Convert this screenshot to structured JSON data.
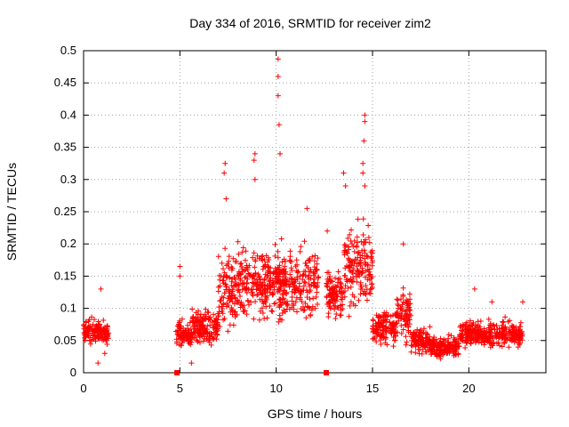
{
  "chart_data": {
    "type": "scatter",
    "title": "Day 334 of 2016, SRMTID for receiver zim2",
    "xlabel": "GPS time / hours",
    "ylabel": "SRMTID / TECUs",
    "xlim": [
      0,
      24
    ],
    "ylim": [
      0,
      0.5
    ],
    "x_ticks": [
      0,
      5,
      10,
      15,
      20
    ],
    "x_tick_labels": [
      "0",
      "5",
      "10",
      "15",
      "20"
    ],
    "y_ticks": [
      0,
      0.05,
      0.1,
      0.15,
      0.2,
      0.25,
      0.3,
      0.35,
      0.4,
      0.45,
      0.5
    ],
    "y_tick_labels": [
      "0",
      "0.05",
      "0.1",
      "0.15",
      "0.2",
      "0.25",
      "0.3",
      "0.35",
      "0.4",
      "0.45",
      "0.5"
    ],
    "grid": true,
    "marker": "+",
    "color": "#ff0000",
    "series": [
      {
        "name": "SRMTID",
        "density_profile": [
          {
            "x_range": [
              0.0,
              1.3
            ],
            "y_median": 0.062,
            "y_spread": 0.018
          },
          {
            "x_range": [
              4.8,
              5.6
            ],
            "y_median": 0.06,
            "y_spread": 0.02
          },
          {
            "x_range": [
              5.6,
              7.0
            ],
            "y_median": 0.07,
            "y_spread": 0.025
          },
          {
            "x_range": [
              7.0,
              8.0
            ],
            "y_median": 0.13,
            "y_spread": 0.06
          },
          {
            "x_range": [
              8.0,
              9.5
            ],
            "y_median": 0.14,
            "y_spread": 0.06
          },
          {
            "x_range": [
              9.5,
              12.2
            ],
            "y_median": 0.14,
            "y_spread": 0.05
          },
          {
            "x_range": [
              12.6,
              13.5
            ],
            "y_median": 0.12,
            "y_spread": 0.04
          },
          {
            "x_range": [
              13.5,
              15.0
            ],
            "y_median": 0.16,
            "y_spread": 0.06
          },
          {
            "x_range": [
              15.0,
              16.2
            ],
            "y_median": 0.07,
            "y_spread": 0.025
          },
          {
            "x_range": [
              16.2,
              17.0
            ],
            "y_median": 0.09,
            "y_spread": 0.04
          },
          {
            "x_range": [
              17.0,
              18.0
            ],
            "y_median": 0.05,
            "y_spread": 0.02
          },
          {
            "x_range": [
              18.0,
              19.5
            ],
            "y_median": 0.04,
            "y_spread": 0.015
          },
          {
            "x_range": [
              19.5,
              22.8
            ],
            "y_median": 0.06,
            "y_spread": 0.02
          }
        ],
        "highlight_points": [
          {
            "x": 10.1,
            "y": 0.487
          },
          {
            "x": 10.1,
            "y": 0.46
          },
          {
            "x": 10.1,
            "y": 0.43
          },
          {
            "x": 10.15,
            "y": 0.385
          },
          {
            "x": 10.2,
            "y": 0.34
          },
          {
            "x": 14.6,
            "y": 0.4
          },
          {
            "x": 14.6,
            "y": 0.39
          },
          {
            "x": 14.55,
            "y": 0.36
          },
          {
            "x": 14.5,
            "y": 0.325
          },
          {
            "x": 14.5,
            "y": 0.31
          },
          {
            "x": 14.6,
            "y": 0.29
          },
          {
            "x": 8.9,
            "y": 0.34
          },
          {
            "x": 8.85,
            "y": 0.33
          },
          {
            "x": 8.9,
            "y": 0.3
          },
          {
            "x": 7.35,
            "y": 0.325
          },
          {
            "x": 7.3,
            "y": 0.31
          },
          {
            "x": 7.4,
            "y": 0.27
          },
          {
            "x": 13.5,
            "y": 0.31
          },
          {
            "x": 13.6,
            "y": 0.29
          },
          {
            "x": 11.6,
            "y": 0.255
          },
          {
            "x": 16.6,
            "y": 0.2
          },
          {
            "x": 12.65,
            "y": 0.22
          },
          {
            "x": 0.9,
            "y": 0.13
          },
          {
            "x": 5.0,
            "y": 0.165
          },
          {
            "x": 5.0,
            "y": 0.15
          },
          {
            "x": 22.8,
            "y": 0.11
          },
          {
            "x": 20.3,
            "y": 0.13
          },
          {
            "x": 21.2,
            "y": 0.11
          },
          {
            "x": 1.1,
            "y": 0.03
          },
          {
            "x": 0.75,
            "y": 0.015
          },
          {
            "x": 5.6,
            "y": 0.015
          }
        ],
        "zero_markers": [
          {
            "x": 4.85,
            "y": 0.0
          },
          {
            "x": 12.6,
            "y": 0.0
          }
        ]
      }
    ]
  }
}
